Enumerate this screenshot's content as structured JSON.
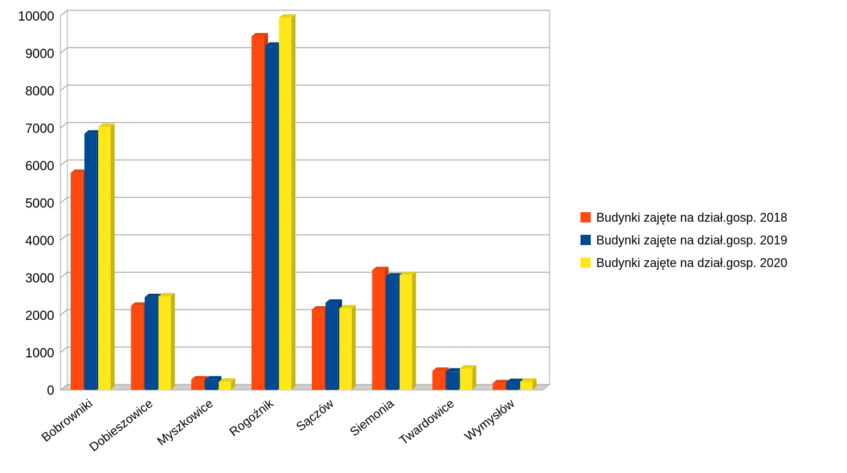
{
  "chart_data": {
    "type": "bar",
    "categories": [
      "Bobrowniki",
      "Dobieszowice",
      "Myszkowice",
      "Rogoźnik",
      "Sączów",
      "Siemonia",
      "Twardowice",
      "Wymysłów"
    ],
    "series": [
      {
        "name": "Budynki zajęte na dział.gosp. 2018",
        "color": "#ff4a0f",
        "values": [
          5800,
          2250,
          280,
          9450,
          2150,
          3200,
          510,
          180
        ]
      },
      {
        "name": "Budynki zajęte na dział.gosp. 2019",
        "color": "#004a95",
        "values": [
          6850,
          2480,
          280,
          9200,
          2330,
          3030,
          490,
          210
        ]
      },
      {
        "name": "Budynki zajęte na dział.gosp. 2020",
        "color": "#ffe81a",
        "values": [
          7030,
          2500,
          220,
          9950,
          2180,
          3070,
          570,
          220
        ]
      }
    ],
    "title": "",
    "xlabel": "",
    "ylabel": "",
    "ylim": [
      0,
      10000
    ],
    "yticks": [
      "0",
      "1000",
      "2000",
      "3000",
      "4000",
      "5000",
      "6000",
      "7000",
      "8000",
      "9000",
      "10000"
    ],
    "grid": true,
    "legend_position": "right"
  }
}
